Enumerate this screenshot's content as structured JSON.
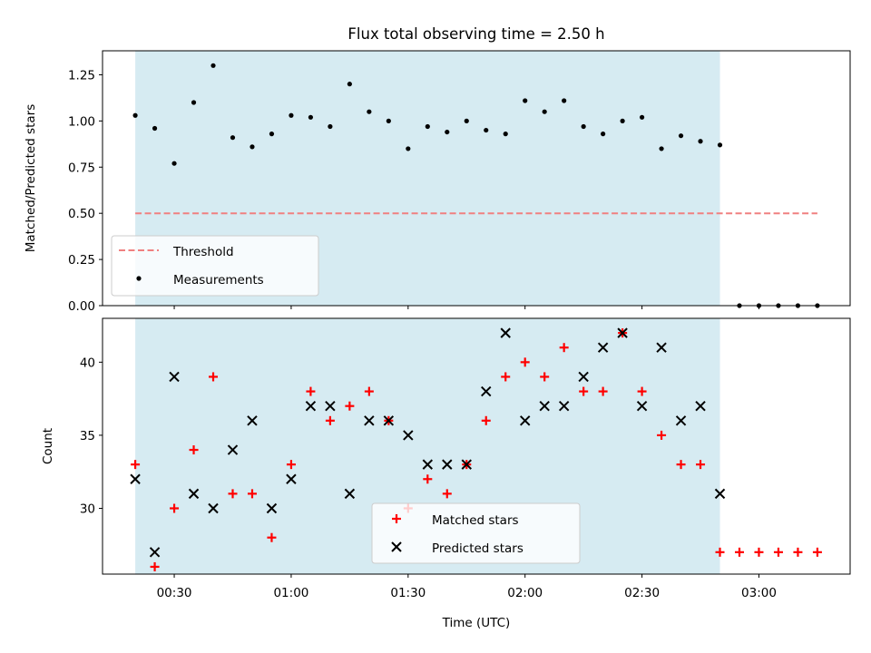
{
  "chart_data": [
    {
      "type": "scatter",
      "title": "Flux total observing time = 2.50 h",
      "xlabel": "",
      "ylabel": "Matched/Predicted stars",
      "ylim": [
        0,
        1.38
      ],
      "yticks": [
        "0.00",
        "0.25",
        "0.50",
        "0.75",
        "1.00",
        "1.25"
      ],
      "xticks_minutes": [
        30,
        60,
        90,
        120,
        150,
        180
      ],
      "grid": false,
      "legend_position": "lower-left",
      "shaded_span_minutes": [
        20,
        170
      ],
      "threshold": {
        "name": "Threshold",
        "value": 0.5,
        "x_range_minutes": [
          20,
          195
        ],
        "color": "#f08080"
      },
      "series": [
        {
          "name": "Measurements",
          "marker": "dot",
          "color": "#000000",
          "x_minutes": [
            20,
            25,
            30,
            35,
            40,
            45,
            50,
            55,
            60,
            65,
            70,
            75,
            80,
            85,
            90,
            95,
            100,
            105,
            110,
            115,
            120,
            125,
            130,
            135,
            140,
            145,
            150,
            155,
            160,
            165,
            170,
            175,
            180,
            185,
            190,
            195
          ],
          "values": [
            1.03,
            0.96,
            0.77,
            1.1,
            1.3,
            0.91,
            0.86,
            0.93,
            1.03,
            1.02,
            0.97,
            1.2,
            1.05,
            1.0,
            0.85,
            0.97,
            0.94,
            1.0,
            0.95,
            0.93,
            1.11,
            1.05,
            1.11,
            0.97,
            0.93,
            1.0,
            1.02,
            0.85,
            0.92,
            0.89,
            0.87,
            0.0,
            0.0,
            0.0,
            0.0,
            0.0
          ]
        }
      ]
    },
    {
      "type": "scatter",
      "title": "",
      "xlabel": "Time (UTC)",
      "ylabel": "Count",
      "ylim": [
        25.5,
        43.0
      ],
      "yticks": [
        "30",
        "35",
        "40"
      ],
      "xtick_labels": [
        "00:30",
        "01:00",
        "01:30",
        "02:00",
        "02:30",
        "03:00"
      ],
      "xticks_minutes": [
        30,
        60,
        90,
        120,
        150,
        180
      ],
      "grid": false,
      "legend_position": "lower-center",
      "shaded_span_minutes": [
        20,
        170
      ],
      "series": [
        {
          "name": "Matched stars",
          "marker": "plus",
          "color": "#ff0000",
          "x_minutes": [
            20,
            25,
            30,
            35,
            40,
            45,
            50,
            55,
            60,
            65,
            70,
            75,
            80,
            85,
            90,
            95,
            100,
            105,
            110,
            115,
            120,
            125,
            130,
            135,
            140,
            145,
            150,
            155,
            160,
            165,
            170,
            175,
            180,
            185,
            190,
            195
          ],
          "values": [
            33,
            26,
            30,
            34,
            39,
            31,
            31,
            28,
            33,
            38,
            36,
            37,
            38,
            36,
            30,
            32,
            31,
            33,
            36,
            39,
            40,
            39,
            41,
            38,
            38,
            42,
            38,
            35,
            33,
            33,
            27,
            27,
            27,
            27,
            27,
            27
          ]
        },
        {
          "name": "Predicted stars",
          "marker": "x",
          "color": "#000000",
          "x_minutes": [
            20,
            25,
            30,
            35,
            40,
            45,
            50,
            55,
            60,
            65,
            70,
            75,
            80,
            85,
            90,
            95,
            100,
            105,
            110,
            115,
            120,
            125,
            130,
            135,
            140,
            145,
            150,
            155,
            160,
            165,
            170
          ],
          "values": [
            32,
            27,
            39,
            31,
            30,
            34,
            36,
            30,
            32,
            37,
            37,
            31,
            36,
            36,
            35,
            33,
            33,
            33,
            38,
            42,
            36,
            37,
            37,
            39,
            41,
            42,
            37,
            41,
            36,
            37,
            31
          ]
        }
      ]
    }
  ],
  "colors": {
    "shade": "#add8e6",
    "threshold": "#f08080",
    "matched": "#ff0000",
    "predicted": "#000000",
    "measurements": "#000000"
  }
}
